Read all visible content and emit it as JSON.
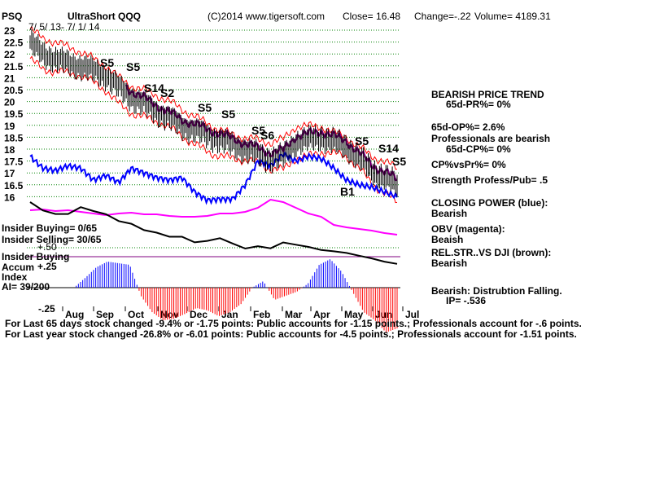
{
  "header": {
    "ticker": "PSQ",
    "name": "UltraShort QQQ",
    "copyright": "(C)2014 www.tigersoft.com",
    "close": "Close=  16.48",
    "change": "Change=-.22",
    "volume": "Volume= 4189.31",
    "date_range": "7/ 5/ 13- 7/ 1/ 14"
  },
  "right_panel": {
    "trend_title": "BEARISH PRICE TREND",
    "pr": "65d-PR%= 0%",
    "op": "65d-OP%= 2.6%",
    "prof_bearish": "Professionals are bearish",
    "cp": "65d-CP%= 0%",
    "cpvspr": "CP%vsPr%=  0%",
    "strength": "Strength Profess/Pub= .5",
    "closing_power": "CLOSING POWER (blue):",
    "closing_power_val": "Bearish",
    "obv": "OBV (magenta):",
    "obv_val": "Beaish",
    "relstr": "REL.STR..VS DJI (brown):",
    "relstr_val": "Bearish",
    "accum": "Bearish: Distrubtion Falling.",
    "ip": "IP= -.536"
  },
  "left_panel": {
    "insider_buying_count": "Insider Buying= 0/65",
    "insider_selling_count": "Insider Selling= 30/65",
    "minus50": "+.50",
    "insider_buying_label": "Insider Buying",
    "accum": "Accum",
    "plus25": "+.25",
    "index": "Index",
    "ai": "AI= 39/200",
    "minus25": "-.25"
  },
  "footer": {
    "line1": "For Last 65 days stock changed -9.4% or -1.75 points:  Public accounts for -1.15 points.;  Professionals account for -.6 points.",
    "line2": "For Last year stock changed -26.8% or -6.01 points:  Public accounts for -4.5 points.;  Professionals account for -1.51 points."
  },
  "chart_data": {
    "type": "line",
    "y_ticks": [
      "23",
      "22.5",
      "22",
      "21.5",
      "21",
      "20.5",
      "20",
      "19.5",
      "19",
      "18.5",
      "18",
      "17.5",
      "17",
      "16.5",
      "16"
    ],
    "ylim": [
      15.75,
      23
    ],
    "x_ticks": [
      "Aug",
      "Sep",
      "Oct",
      "Nov",
      "Dec",
      "Jan",
      "Feb",
      "Mar",
      "Apr",
      "May",
      "Jun",
      "Jul"
    ],
    "signals": [
      "S5",
      "S5",
      "S14",
      "S2",
      "S5",
      "S5",
      "S5",
      "S6",
      "S5",
      "S14",
      "S5",
      "B1"
    ],
    "series": [
      {
        "name": "PSQ",
        "color": "#000000",
        "values": [
          22.5,
          22.0,
          21.8,
          21.6,
          21.5,
          21.3,
          21.1,
          20.6,
          20.2,
          19.9,
          19.6,
          19.3,
          19.0,
          18.8,
          18.6,
          18.4,
          18.2,
          18.0,
          17.8,
          17.6,
          17.7,
          18.3,
          18.4,
          18.5,
          18.3,
          18.1,
          17.6,
          17.1,
          16.8,
          16.48
        ]
      },
      {
        "name": "CLOSING POWER",
        "color": "#0000ff"
      },
      {
        "name": "OBV",
        "color": "#ff00ff"
      },
      {
        "name": "REL.STR..VS DJI",
        "color": "#000000"
      }
    ]
  },
  "colors": {
    "price_band": "#ff0000",
    "moving_avg": "#800080",
    "closing_power": "#0000ff",
    "obv": "#ff00ff",
    "accum_pos": "#0000ff",
    "accum_neg": "#ff0000",
    "grid": "#008000"
  }
}
